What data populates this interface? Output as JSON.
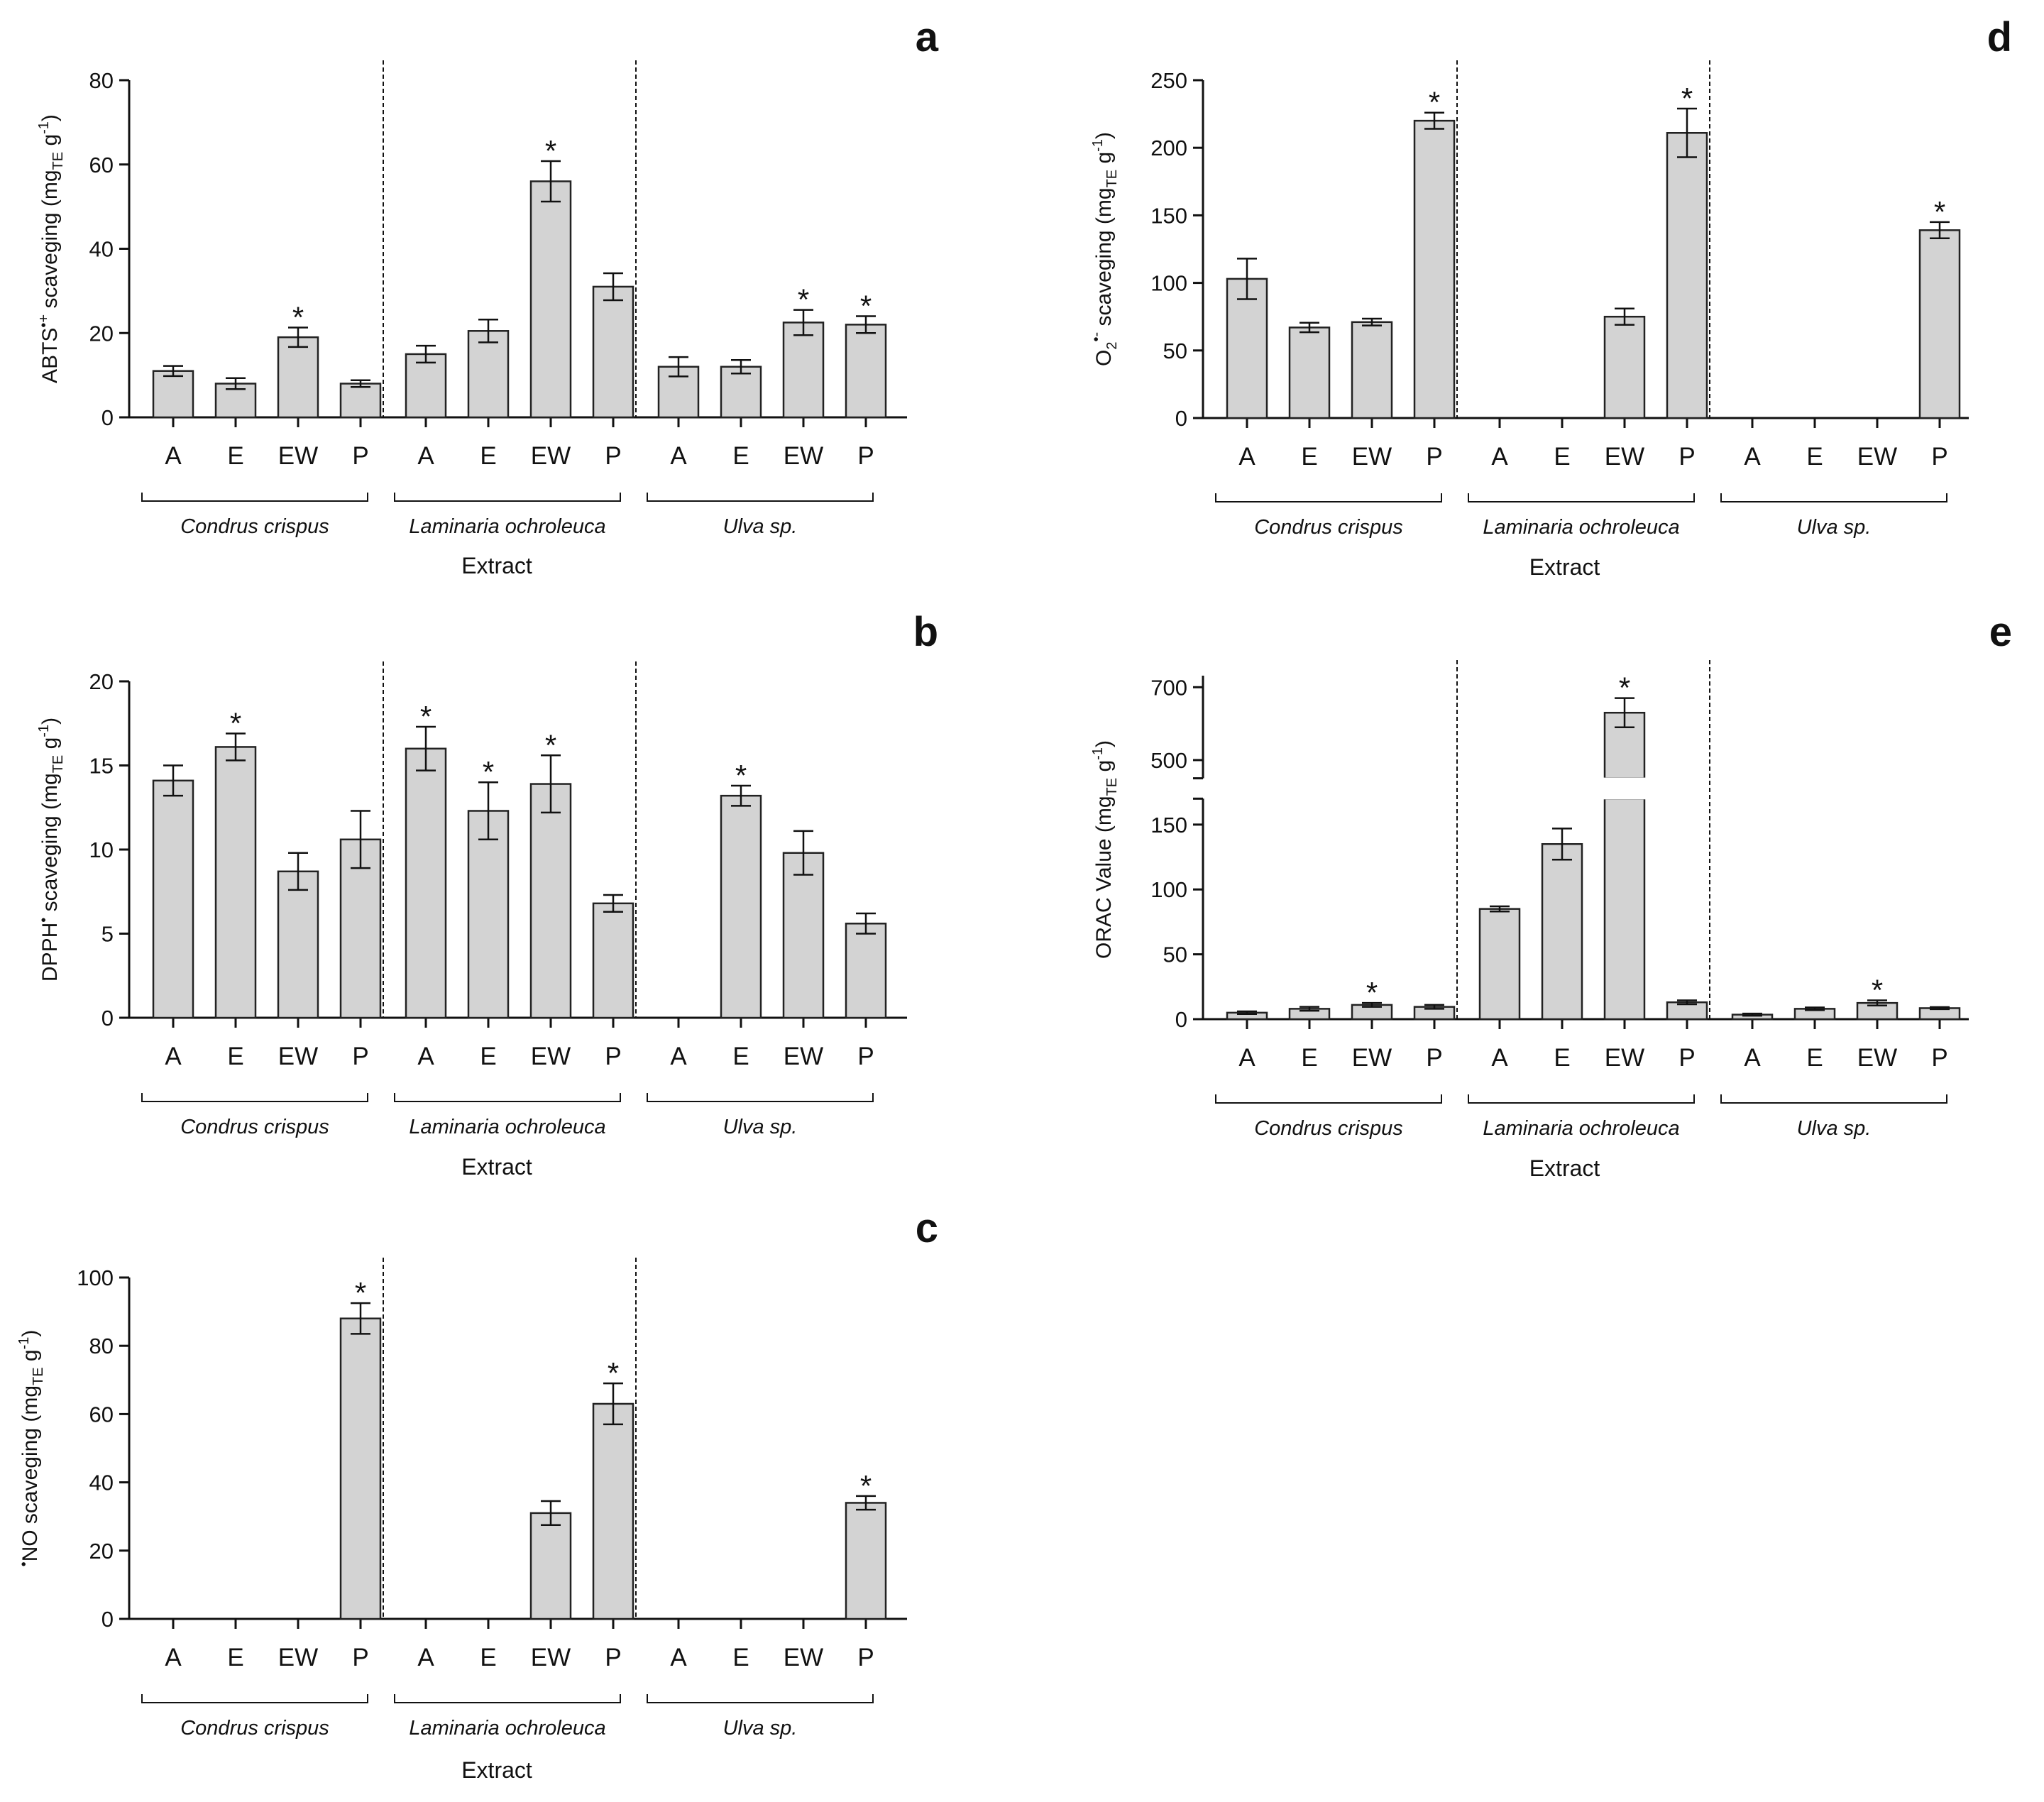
{
  "chart_data": [
    {
      "id": "a",
      "type": "bar",
      "panel_letter": "a",
      "ylabel": "ABTS•+ scaveging (mgTE g-1)",
      "ylabel_parts": {
        "pre": "ABTS",
        "sup1": "•+",
        "mid": " scaveging (mg",
        "sub": "TE",
        "post": " g",
        "sup2": "-1",
        "end": ")"
      },
      "xlabel": "Extract",
      "ylim": [
        0,
        80
      ],
      "yticks": [
        0,
        20,
        40,
        60,
        80
      ],
      "groups": [
        "Condrus crispus",
        "Laminaria ochroleuca",
        "Ulva sp."
      ],
      "categories": [
        "A",
        "E",
        "EW",
        "P"
      ],
      "values": [
        [
          11,
          8,
          19,
          8
        ],
        [
          15,
          20.5,
          56,
          31
        ],
        [
          12,
          12,
          22.5,
          22
        ]
      ],
      "errors": [
        [
          1.2,
          1.3,
          2.3,
          0.8
        ],
        [
          2,
          2.7,
          4.8,
          3.2
        ],
        [
          2.3,
          1.6,
          3,
          2
        ]
      ],
      "significant": [
        [
          false,
          false,
          true,
          false
        ],
        [
          false,
          false,
          true,
          false
        ],
        [
          false,
          false,
          true,
          true
        ]
      ],
      "star": "*"
    },
    {
      "id": "b",
      "type": "bar",
      "panel_letter": "b",
      "ylabel": "DPPH• scaveging (mgTE g-1)",
      "ylabel_parts": {
        "pre": "DPPH",
        "sup1": "•",
        "mid": " scaveging (mg",
        "sub": "TE",
        "post": " g",
        "sup2": "-1",
        "end": ")"
      },
      "xlabel": "Extract",
      "ylim": [
        0,
        20
      ],
      "yticks": [
        0,
        5,
        10,
        15,
        20
      ],
      "groups": [
        "Condrus crispus",
        "Laminaria ochroleuca",
        "Ulva sp."
      ],
      "categories": [
        "A",
        "E",
        "EW",
        "P"
      ],
      "values": [
        [
          14.1,
          16.1,
          8.7,
          10.6
        ],
        [
          16,
          12.3,
          13.9,
          6.8
        ],
        [
          0,
          13.2,
          9.8,
          5.6
        ]
      ],
      "errors": [
        [
          0.9,
          0.8,
          1.1,
          1.7
        ],
        [
          1.3,
          1.7,
          1.7,
          0.5
        ],
        [
          0,
          0.6,
          1.3,
          0.6
        ]
      ],
      "significant": [
        [
          false,
          true,
          false,
          false
        ],
        [
          true,
          true,
          true,
          false
        ],
        [
          false,
          true,
          false,
          false
        ]
      ],
      "star": "*"
    },
    {
      "id": "c",
      "type": "bar",
      "panel_letter": "c",
      "ylabel": "•NO scaveging (mgTE g-1)",
      "ylabel_parts": {
        "pre": "",
        "sup1": "•",
        "mid": "NO scaveging (mg",
        "sub": "TE",
        "post": " g",
        "sup2": "-1",
        "end": ")"
      },
      "xlabel": "Extract",
      "ylim": [
        0,
        100
      ],
      "yticks": [
        0,
        20,
        40,
        60,
        80,
        100
      ],
      "groups": [
        "Condrus crispus",
        "Laminaria ochroleuca",
        "Ulva sp."
      ],
      "categories": [
        "A",
        "E",
        "EW",
        "P"
      ],
      "values": [
        [
          0,
          0,
          0,
          88
        ],
        [
          0,
          0,
          31,
          63
        ],
        [
          0,
          0,
          0,
          34
        ]
      ],
      "errors": [
        [
          0,
          0,
          0,
          4.5
        ],
        [
          0,
          0,
          3.5,
          6
        ],
        [
          0,
          0,
          0,
          2
        ]
      ],
      "significant": [
        [
          false,
          false,
          false,
          true
        ],
        [
          false,
          false,
          false,
          true
        ],
        [
          false,
          false,
          false,
          true
        ]
      ],
      "star": "*"
    },
    {
      "id": "d",
      "type": "bar",
      "panel_letter": "d",
      "ylabel": "O2•- scaveging (mgTE g-1)",
      "ylabel_parts": {
        "pre": "O",
        "sub0": "2",
        "sup1": "•-",
        "mid": " scaveging (mg",
        "sub": "TE",
        "post": " g",
        "sup2": "-1",
        "end": ")"
      },
      "xlabel": "Extract",
      "ylim": [
        0,
        250
      ],
      "yticks": [
        0,
        50,
        100,
        150,
        200,
        250
      ],
      "groups": [
        "Condrus crispus",
        "Laminaria ochroleuca",
        "Ulva sp."
      ],
      "categories": [
        "A",
        "E",
        "EW",
        "P"
      ],
      "values": [
        [
          103,
          67,
          71,
          220
        ],
        [
          0,
          0,
          75,
          211
        ],
        [
          0,
          0,
          0,
          139
        ]
      ],
      "errors": [
        [
          15,
          3.5,
          2.5,
          6
        ],
        [
          0,
          0,
          6,
          18
        ],
        [
          0,
          0,
          0,
          6
        ]
      ],
      "significant": [
        [
          false,
          false,
          false,
          true
        ],
        [
          false,
          false,
          false,
          true
        ],
        [
          false,
          false,
          false,
          true
        ]
      ],
      "star": "*"
    },
    {
      "id": "e",
      "type": "bar",
      "panel_letter": "e",
      "ylabel": "ORAC Value (mgTE g-1)",
      "ylabel_parts": {
        "pre": "ORAC Value",
        "sup1": "",
        "mid": " (mg",
        "sub": "TE",
        "post": " g",
        "sup2": "-1",
        "end": ")"
      },
      "xlabel": "Extract",
      "ylim": [
        0,
        700
      ],
      "yticks": [
        0,
        50,
        100,
        150,
        500,
        700
      ],
      "axis_break": {
        "lower_range": [
          0,
          170
        ],
        "upper_range": [
          450,
          720
        ]
      },
      "groups": [
        "Condrus crispus",
        "Laminaria ochroleuca",
        "Ulva sp."
      ],
      "categories": [
        "A",
        "E",
        "EW",
        "P"
      ],
      "values": [
        [
          5,
          8,
          11,
          9.5
        ],
        [
          85,
          135,
          630,
          13
        ],
        [
          3.5,
          8,
          12.5,
          8.5
        ]
      ],
      "errors": [
        [
          1,
          1.5,
          1.5,
          1.5
        ],
        [
          2,
          12,
          40,
          1.5
        ],
        [
          0.8,
          1,
          2,
          0.8
        ]
      ],
      "significant": [
        [
          false,
          false,
          true,
          false
        ],
        [
          false,
          false,
          true,
          false
        ],
        [
          false,
          false,
          true,
          false
        ]
      ],
      "star": "*"
    }
  ]
}
